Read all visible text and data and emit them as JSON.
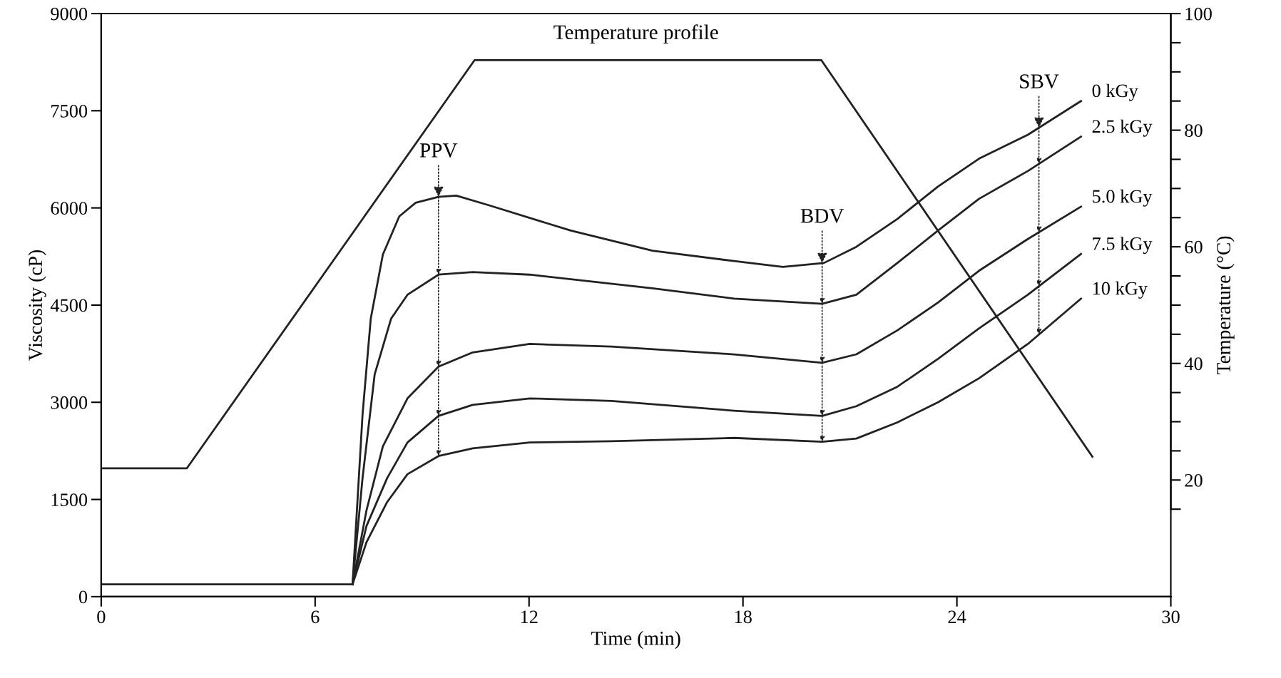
{
  "chart_data": {
    "type": "line",
    "xlabel": "Time (min)",
    "ylabel": "Viscosity (cP)",
    "y2label": "Temperature (°C)",
    "xlim": [
      0,
      30
    ],
    "xticks": [
      0,
      6,
      12,
      18,
      24,
      30
    ],
    "ylim": [
      0,
      9000
    ],
    "yticks": [
      0,
      1500,
      3000,
      4500,
      6000,
      7500,
      9000
    ],
    "y2lim": [
      0,
      100
    ],
    "y2ticks": [
      {
        "value": 15,
        "label": null
      },
      20,
      {
        "value": 25,
        "label": null
      },
      {
        "value": 30,
        "label": null
      },
      {
        "value": 35,
        "label": null
      },
      40,
      {
        "value": 45,
        "label": null
      },
      {
        "value": 50,
        "label": null
      },
      {
        "value": 55,
        "label": null
      },
      60,
      {
        "value": 65,
        "label": null
      },
      {
        "value": 70,
        "label": null
      },
      {
        "value": 75,
        "label": null
      },
      80,
      {
        "value": 85,
        "label": null
      },
      {
        "value": 90,
        "label": null
      },
      {
        "value": 95,
        "label": null
      },
      100
    ],
    "grid": false,
    "legend": false,
    "marker": "none",
    "line_style": "solid",
    "series": [
      {
        "name": "0 kGy",
        "color": "#222222",
        "x": [
          7.05,
          7.33,
          7.56,
          7.9,
          8.36,
          8.82,
          9.46,
          9.96,
          10.88,
          13.17,
          15.46,
          17.75,
          19.12,
          20.27,
          21.18,
          22.33,
          23.47,
          24.62,
          25.99,
          27.48
        ],
        "values": [
          190,
          2810,
          4290,
          5280,
          5870,
          6080,
          6170,
          6190,
          6040,
          5650,
          5340,
          5180,
          5090,
          5150,
          5400,
          5830,
          6330,
          6760,
          7130,
          7650
        ]
      },
      {
        "name": "2.5 kGy",
        "color": "#222222",
        "x": [
          7.05,
          7.33,
          7.67,
          8.13,
          8.59,
          9.46,
          10.42,
          12.02,
          15.46,
          17.75,
          20.22,
          21.18,
          22.33,
          23.47,
          24.62,
          25.99,
          27.48
        ],
        "values": [
          190,
          1830,
          3430,
          4290,
          4660,
          4970,
          5010,
          4970,
          4760,
          4600,
          4520,
          4660,
          5150,
          5650,
          6140,
          6570,
          7100
        ]
      },
      {
        "name": "5.0 kGy",
        "color": "#222222",
        "x": [
          7.05,
          7.44,
          7.9,
          8.59,
          9.46,
          10.42,
          12.02,
          14.31,
          17.75,
          20.22,
          21.18,
          22.33,
          23.47,
          24.62,
          25.99,
          27.48
        ],
        "values": [
          190,
          1330,
          2320,
          3060,
          3550,
          3770,
          3900,
          3860,
          3740,
          3610,
          3740,
          4110,
          4540,
          5030,
          5520,
          6020
        ]
      },
      {
        "name": "7.5 kGy",
        "color": "#222222",
        "x": [
          7.05,
          7.44,
          8.02,
          8.59,
          9.46,
          10.42,
          12.02,
          14.31,
          17.75,
          20.22,
          21.18,
          22.33,
          23.47,
          24.62,
          25.99,
          27.48
        ],
        "values": [
          190,
          1090,
          1830,
          2380,
          2790,
          2960,
          3060,
          3020,
          2870,
          2790,
          2940,
          3240,
          3670,
          4140,
          4660,
          5290
        ]
      },
      {
        "name": "10 kGy",
        "color": "#222222",
        "x": [
          7.05,
          7.44,
          8.02,
          8.59,
          9.46,
          10.42,
          12.02,
          14.31,
          17.75,
          20.22,
          21.18,
          22.33,
          23.47,
          24.62,
          25.99,
          27.48
        ],
        "values": [
          190,
          840,
          1460,
          1890,
          2170,
          2290,
          2380,
          2400,
          2450,
          2390,
          2440,
          2690,
          3000,
          3370,
          3900,
          4600
        ]
      },
      {
        "color": "#222222",
        "axis": "y2",
        "x": [
          0,
          2.4,
          10.47,
          20.2,
          27.8
        ],
        "values": [
          22,
          22,
          92,
          92,
          24
        ]
      },
      {
        "color": "#222222",
        "x": [
          0,
          7.05
        ],
        "values": [
          190,
          190
        ]
      }
    ],
    "annotations": [
      "Temperature profile",
      {
        "text": "PPV",
        "x": 9.46,
        "y": 6165
      },
      {
        "text": "BDV",
        "x": 20.22,
        "y": 5154
      },
      {
        "text": "SBV",
        "x": 26.3,
        "y": 7230
      }
    ]
  }
}
